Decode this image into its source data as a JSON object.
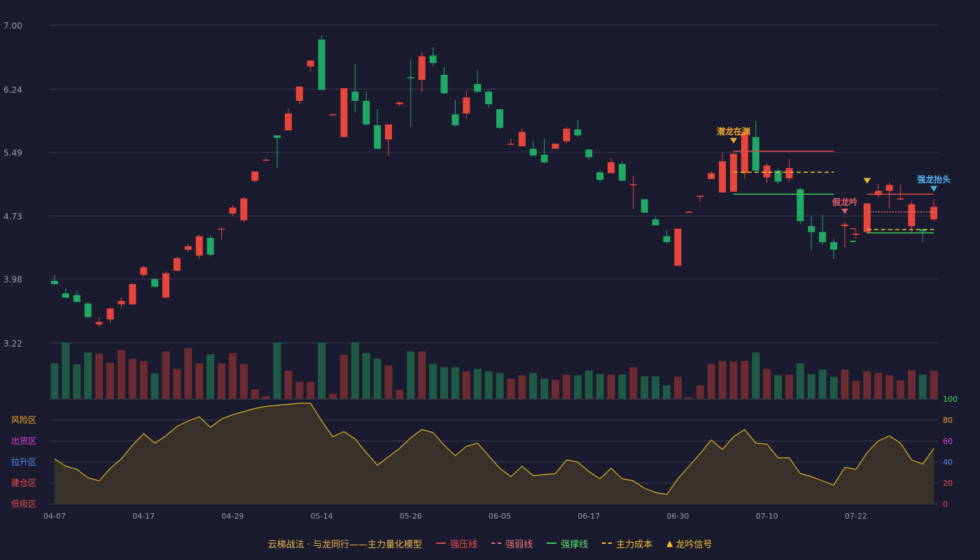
{
  "chart_data": {
    "type": "candlestick",
    "price_axis": {
      "ticks": [
        "7.00",
        "6.24",
        "5.49",
        "4.73",
        "3.98",
        "3.22"
      ],
      "ylim": [
        3.22,
        7.0
      ]
    },
    "x_tick_labels": [
      "04-07",
      "04-17",
      "04-29",
      "05-14",
      "05-26",
      "06-05",
      "06-17",
      "06-30",
      "07-10",
      "07-22"
    ],
    "x_tick_index": [
      0,
      8,
      16,
      24,
      32,
      40,
      48,
      56,
      64,
      72
    ],
    "candles": [
      [
        3.96,
        3.92,
        4.03,
        3.91
      ],
      [
        3.81,
        3.76,
        3.87,
        3.75
      ],
      [
        3.79,
        3.71,
        3.84,
        3.7
      ],
      [
        3.69,
        3.53,
        3.71,
        3.52
      ],
      [
        3.44,
        3.47,
        3.53,
        3.41
      ],
      [
        3.5,
        3.63,
        3.64,
        3.46
      ],
      [
        3.68,
        3.72,
        3.76,
        3.63
      ],
      [
        3.68,
        3.92,
        3.93,
        3.67
      ],
      [
        4.03,
        4.12,
        4.14,
        4.01
      ],
      [
        3.98,
        3.89,
        3.99,
        3.88
      ],
      [
        3.76,
        4.05,
        4.07,
        3.75
      ],
      [
        4.08,
        4.23,
        4.25,
        4.07
      ],
      [
        4.33,
        4.37,
        4.4,
        4.3
      ],
      [
        4.26,
        4.49,
        4.51,
        4.22
      ],
      [
        4.47,
        4.27,
        4.5,
        4.25
      ],
      [
        4.58,
        4.58,
        4.59,
        4.45
      ],
      [
        4.76,
        4.83,
        4.86,
        4.73
      ],
      [
        4.68,
        4.94,
        4.96,
        4.66
      ],
      [
        5.15,
        5.26,
        5.26,
        5.13
      ],
      [
        5.4,
        5.4,
        5.42,
        5.39
      ],
      [
        5.69,
        5.66,
        5.69,
        5.3
      ],
      [
        5.75,
        5.95,
        6.01,
        5.8
      ],
      [
        6.1,
        6.27,
        6.27,
        6.06
      ],
      [
        6.51,
        6.58,
        6.58,
        6.45
      ],
      [
        6.83,
        6.23,
        6.88,
        6.23
      ],
      [
        5.94,
        5.94,
        5.95,
        5.94
      ],
      [
        5.67,
        6.25,
        6.25,
        5.67
      ],
      [
        6.21,
        6.1,
        6.54,
        5.96
      ],
      [
        6.1,
        5.82,
        6.21,
        5.81
      ],
      [
        5.81,
        5.53,
        6.0,
        5.53
      ],
      [
        5.64,
        5.82,
        5.82,
        5.45
      ],
      [
        6.06,
        6.08,
        6.09,
        6.03
      ],
      [
        6.38,
        6.37,
        6.59,
        5.79
      ],
      [
        6.35,
        6.63,
        6.68,
        6.21
      ],
      [
        6.64,
        6.55,
        6.74,
        6.51
      ],
      [
        6.41,
        6.19,
        6.5,
        6.18
      ],
      [
        5.94,
        5.81,
        6.11,
        5.79
      ],
      [
        5.95,
        6.14,
        6.22,
        5.89
      ],
      [
        6.3,
        6.21,
        6.46,
        6.19
      ],
      [
        6.21,
        6.06,
        6.22,
        6.02
      ],
      [
        6.0,
        5.78,
        6.01,
        5.76
      ],
      [
        5.59,
        5.59,
        5.65,
        5.58
      ],
      [
        5.56,
        5.73,
        5.77,
        5.56
      ],
      [
        5.53,
        5.45,
        5.62,
        5.44
      ],
      [
        5.46,
        5.37,
        5.65,
        5.35
      ],
      [
        5.53,
        5.59,
        5.59,
        5.54
      ],
      [
        5.62,
        5.77,
        5.79,
        5.59
      ],
      [
        5.76,
        5.69,
        5.87,
        5.67
      ],
      [
        5.52,
        5.43,
        5.53,
        5.4
      ],
      [
        5.25,
        5.16,
        5.28,
        5.13
      ],
      [
        5.24,
        5.37,
        5.42,
        5.26
      ],
      [
        5.35,
        5.15,
        5.38,
        5.16
      ],
      [
        5.11,
        5.11,
        5.21,
        4.81
      ],
      [
        4.93,
        4.77,
        4.93,
        4.78
      ],
      [
        4.69,
        4.62,
        4.73,
        4.62
      ],
      [
        4.49,
        4.42,
        4.56,
        4.4
      ],
      [
        4.14,
        4.58,
        4.58,
        4.14
      ],
      [
        4.78,
        4.78,
        4.79,
        4.78
      ],
      [
        4.97,
        4.97,
        4.98,
        4.9
      ],
      [
        5.17,
        5.24,
        5.26,
        5.17
      ],
      [
        5.01,
        5.38,
        5.48,
        5.01
      ],
      [
        5.02,
        5.47,
        5.5,
        5.02
      ],
      [
        5.24,
        5.73,
        5.77,
        5.17
      ],
      [
        5.67,
        5.27,
        5.86,
        5.25
      ],
      [
        5.19,
        5.33,
        5.36,
        5.12
      ],
      [
        5.27,
        5.14,
        5.3,
        5.11
      ],
      [
        5.18,
        5.3,
        5.41,
        5.14
      ],
      [
        5.05,
        4.67,
        5.07,
        4.63
      ],
      [
        4.61,
        4.54,
        4.73,
        4.32
      ],
      [
        4.54,
        4.42,
        4.74,
        4.39
      ],
      [
        4.42,
        4.33,
        4.46,
        4.22
      ],
      [
        4.61,
        4.63,
        4.66,
        4.36
      ],
      [
        4.51,
        4.52,
        4.57,
        4.46
      ],
      [
        4.54,
        4.88,
        4.89,
        4.52
      ],
      [
        4.98,
        5.03,
        5.11,
        4.95
      ],
      [
        5.03,
        5.1,
        5.13,
        4.82
      ],
      [
        4.94,
        4.94,
        5.1,
        4.92
      ],
      [
        4.61,
        4.87,
        4.91,
        4.52
      ],
      [
        4.57,
        4.55,
        4.58,
        4.42
      ],
      [
        4.69,
        4.84,
        4.93,
        4.67
      ]
    ],
    "volume": [
      0.63,
      1.0,
      0.61,
      0.82,
      0.8,
      0.64,
      0.86,
      0.71,
      0.67,
      0.45,
      0.84,
      0.53,
      0.9,
      0.63,
      0.79,
      0.63,
      0.81,
      0.62,
      0.17,
      0.05,
      1.0,
      0.5,
      0.3,
      0.3,
      1.0,
      0.09,
      0.78,
      1.0,
      0.81,
      0.71,
      0.59,
      0.16,
      0.84,
      0.84,
      0.62,
      0.56,
      0.56,
      0.49,
      0.53,
      0.49,
      0.46,
      0.36,
      0.42,
      0.46,
      0.36,
      0.34,
      0.43,
      0.42,
      0.5,
      0.44,
      0.43,
      0.43,
      0.56,
      0.4,
      0.4,
      0.24,
      0.39,
      0.03,
      0.24,
      0.62,
      0.67,
      0.66,
      0.67,
      0.82,
      0.53,
      0.42,
      0.43,
      0.63,
      0.44,
      0.52,
      0.39,
      0.52,
      0.32,
      0.49,
      0.46,
      0.42,
      0.33,
      0.51,
      0.43,
      0.5
    ],
    "oscillator": {
      "left_labels": [
        "风险区",
        "出货区",
        "拉升区",
        "建仓区",
        "低吸区"
      ],
      "right_ticks": [
        "100",
        "80",
        "60",
        "40",
        "20",
        "0"
      ],
      "values": [
        43,
        36,
        33,
        25,
        22,
        34,
        43,
        56,
        67,
        58,
        65,
        74,
        79,
        83,
        73,
        81,
        85,
        88,
        91,
        93,
        94,
        95,
        96,
        96,
        79,
        64,
        69,
        62,
        49,
        37,
        45,
        53,
        63,
        71,
        68,
        56,
        46,
        55,
        58,
        46,
        34,
        26,
        36,
        27,
        28,
        29,
        42,
        40,
        31,
        24,
        34,
        24,
        22,
        15,
        11,
        9,
        24,
        36,
        48,
        61,
        52,
        64,
        71,
        58,
        57,
        44,
        44,
        29,
        26,
        22,
        18,
        35,
        33,
        49,
        60,
        65,
        58,
        42,
        38,
        53
      ]
    },
    "annotations": [
      {
        "label": "潜龙在渊",
        "index": 61,
        "color": "#f0a830"
      },
      {
        "label": "假龙吟",
        "index": 71,
        "color": "#e05a6a"
      },
      {
        "label": "强龙抬头",
        "index": 79,
        "color": "#4fb3f0"
      }
    ],
    "legend": [
      "云梯战法 · 与龙同行——主力量化模型",
      "强压线",
      "强弱线",
      "强撑线",
      "主力成本",
      "龙吟信号"
    ]
  },
  "colors": {
    "up": "#e8453c",
    "down": "#20a865",
    "grid": "#3a3c52",
    "axis_text": "#9a9cae",
    "osc_line": "#d6b52a",
    "osc_fill": "#3b3429",
    "press_line": "#d84a4a",
    "weak_line": "#e07080",
    "support_line": "#3cc85a",
    "cost_line": "#f0c030",
    "legend_text": "#e8b84a",
    "zone_risk": "#f0a830",
    "zone_ship": "#e040e0",
    "zone_pull": "#4f8ff0",
    "zone_build": "#f05050",
    "zone_low": "#e05050",
    "tick_100": "#3ce05a",
    "tick_80": "#f0a830",
    "tick_60": "#e040e0",
    "tick_40": "#4f8ff0",
    "tick_20": "#f05050",
    "tick_0": "#f05050"
  }
}
